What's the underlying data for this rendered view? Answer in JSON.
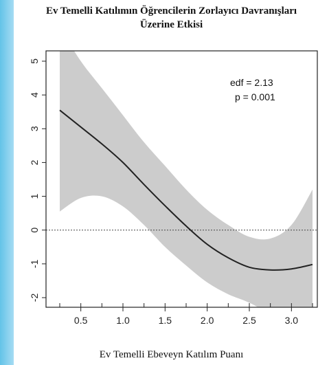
{
  "page": {
    "side_band_color": "#6cc6ea"
  },
  "chart_data": {
    "type": "line",
    "title_line1": "Ev Temelli Katılımın Öğrencilerin Zorlayıcı Davranışları",
    "title_line2": "Üzerine Etkisi",
    "xlabel": "Ev Temelli Ebeveyn Katılım Puanı",
    "ylabel": "",
    "xlim": [
      0.2,
      3.3
    ],
    "ylim": [
      -2.2,
      5.1
    ],
    "x_ticks": [
      0.5,
      1.0,
      1.5,
      2.0,
      2.5,
      3.0
    ],
    "x_tick_labels": [
      "0.5",
      "1.0",
      "1.5",
      "2.0",
      "2.5",
      "3.0"
    ],
    "y_ticks": [
      -2,
      -1,
      0,
      1,
      2,
      3,
      4,
      5
    ],
    "y_tick_labels": [
      "-2",
      "-1",
      "0",
      "1",
      "2",
      "3",
      "4",
      "5"
    ],
    "reference_line_y": 0,
    "annotations": [
      "edf = 2.13",
      "p = 0.001"
    ],
    "series": [
      {
        "role": "fit",
        "color": "#222222",
        "x": [
          0.25,
          0.5,
          0.75,
          1.0,
          1.25,
          1.5,
          1.75,
          2.0,
          2.25,
          2.5,
          2.75,
          3.0,
          3.25
        ],
        "y": [
          3.55,
          3.05,
          2.55,
          2.0,
          1.35,
          0.72,
          0.12,
          -0.42,
          -0.82,
          -1.1,
          -1.18,
          -1.15,
          -1.02
        ]
      },
      {
        "role": "confidence-band",
        "color": "#cccccc",
        "x": [
          0.25,
          0.5,
          0.75,
          1.0,
          1.25,
          1.5,
          1.75,
          2.0,
          2.25,
          2.5,
          2.75,
          3.0,
          3.25
        ],
        "lower": [
          0.55,
          0.95,
          1.0,
          0.7,
          0.15,
          -0.5,
          -1.05,
          -1.55,
          -1.9,
          -2.15,
          -2.5,
          -2.9,
          -3.2
        ],
        "upper": [
          6.0,
          5.0,
          4.2,
          3.4,
          2.6,
          1.9,
          1.2,
          0.6,
          0.15,
          -0.2,
          -0.25,
          0.15,
          1.2
        ]
      }
    ],
    "grid": false
  }
}
